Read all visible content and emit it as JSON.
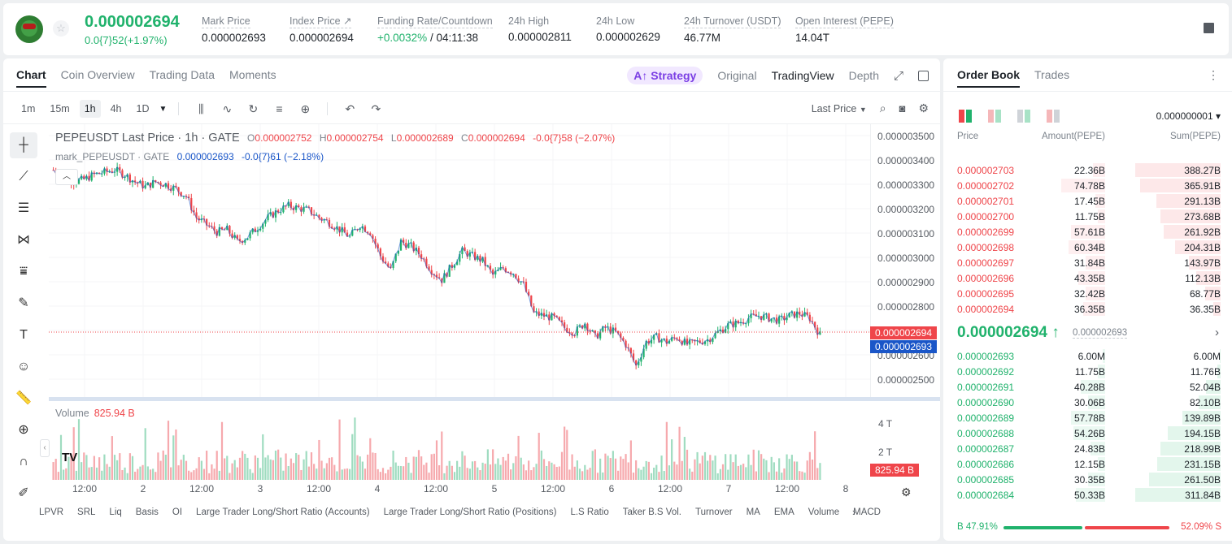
{
  "header": {
    "last_price": "0.000002694",
    "change": "0.0{7}52(+1.97%)",
    "star_icon": "☆",
    "stats": [
      {
        "label": "Mark Price",
        "value": "0.000002693"
      },
      {
        "label": "Index Price ↗",
        "value": "0.000002694"
      },
      {
        "label": "Funding Rate/Countdown",
        "value_green": "+0.0032%",
        "value": " / 04:11:38"
      },
      {
        "label": "24h High",
        "value": "0.000002811"
      },
      {
        "label": "24h Low",
        "value": "0.000002629"
      },
      {
        "label": "24h Turnover (USDT)",
        "value": "46.77M"
      },
      {
        "label": "Open Interest (PEPE)",
        "value": "14.04T"
      }
    ]
  },
  "chart_tabs": [
    "Chart",
    "Coin Overview",
    "Trading Data",
    "Moments"
  ],
  "view_tabs": {
    "strategy": "A↑ Strategy",
    "original": "Original",
    "tradingview": "TradingView",
    "depth": "Depth"
  },
  "toolbar": {
    "timeframes": [
      "1m",
      "15m",
      "1h",
      "4h",
      "1D"
    ],
    "active_timeframe": "1h",
    "price_type": "Last Price"
  },
  "legend": {
    "symbol": "PEPEUSDT Last Price · 1h · GATE",
    "o": "0.000002752",
    "h": "0.000002754",
    "l": "0.000002689",
    "c": "0.000002694",
    "change": "-0.0{7}58 (−2.07%)",
    "mark_symbol": "mark_PEPEUSDT · GATE",
    "mark_value": "0.000002693",
    "mark_change": "-0.0{7}61 (−2.18%)"
  },
  "price_axis": [
    "0.000003500",
    "0.000003400",
    "0.000003300",
    "0.000003200",
    "0.000003100",
    "0.000003000",
    "0.000002900",
    "0.000002800",
    "0.000002600",
    "0.000002500"
  ],
  "price_tag_last": "0.000002694",
  "price_tag_mark": "0.000002693",
  "volume": {
    "label": "Volume",
    "value": "825.94 B",
    "axis": [
      "4 T",
      "2 T"
    ],
    "tag": "825.94 B"
  },
  "time_axis": [
    "12:00",
    "2",
    "12:00",
    "3",
    "12:00",
    "4",
    "12:00",
    "5",
    "12:00",
    "6",
    "12:00",
    "7",
    "12:00",
    "8"
  ],
  "indicators": [
    "LPVR",
    "SRL",
    "Liq",
    "Basis",
    "OI",
    "Large Trader Long/Short Ratio (Accounts)",
    "Large Trader Long/Short Ratio (Positions)",
    "L.S Ratio",
    "Taker B.S Vol.",
    "Turnover",
    "MA",
    "EMA",
    "Volume",
    "MACD"
  ],
  "colors": {
    "up": "#20b26c",
    "down": "#ef454a",
    "mark": "#1a56c8",
    "brand_strategy": "#7b3fe4"
  },
  "orderbook": {
    "tabs": [
      "Order Book",
      "Trades"
    ],
    "tick": "0.000000001 ▾",
    "headers": {
      "price": "Price",
      "amount": "Amount(PEPE)",
      "sum": "Sum(PEPE)"
    },
    "asks": [
      {
        "price": "0.000002703",
        "amount": "22.36B",
        "sum": "388.27B",
        "depth": 1.0,
        "amtDepth": 0.05
      },
      {
        "price": "0.000002702",
        "amount": "74.78B",
        "sum": "365.91B",
        "depth": 0.94,
        "amtDepth": 0.18
      },
      {
        "price": "0.000002701",
        "amount": "17.45B",
        "sum": "291.13B",
        "depth": 0.75,
        "amtDepth": 0.04
      },
      {
        "price": "0.000002700",
        "amount": "11.75B",
        "sum": "273.68B",
        "depth": 0.7,
        "amtDepth": 0.03
      },
      {
        "price": "0.000002699",
        "amount": "57.61B",
        "sum": "261.92B",
        "depth": 0.67,
        "amtDepth": 0.14
      },
      {
        "price": "0.000002698",
        "amount": "60.34B",
        "sum": "204.31B",
        "depth": 0.53,
        "amtDepth": 0.15
      },
      {
        "price": "0.000002697",
        "amount": "31.84B",
        "sum": "143.97B",
        "depth": 0.37,
        "amtDepth": 0.08
      },
      {
        "price": "0.000002696",
        "amount": "43.35B",
        "sum": "112.13B",
        "depth": 0.29,
        "amtDepth": 0.11
      },
      {
        "price": "0.000002695",
        "amount": "32.42B",
        "sum": "68.77B",
        "depth": 0.18,
        "amtDepth": 0.08
      },
      {
        "price": "0.000002694",
        "amount": "36.35B",
        "sum": "36.35B",
        "depth": 0.09,
        "amtDepth": 0.09
      }
    ],
    "mid_price": "0.000002694 ↑",
    "mid_mark": "0.000002693",
    "bids": [
      {
        "price": "0.000002693",
        "amount": "6.00M",
        "sum": "6.00M",
        "depth": 0.01,
        "amtDepth": 0.01
      },
      {
        "price": "0.000002692",
        "amount": "11.75B",
        "sum": "11.76B",
        "depth": 0.04,
        "amtDepth": 0.03
      },
      {
        "price": "0.000002691",
        "amount": "40.28B",
        "sum": "52.04B",
        "depth": 0.17,
        "amtDepth": 0.1
      },
      {
        "price": "0.000002690",
        "amount": "30.06B",
        "sum": "82.10B",
        "depth": 0.26,
        "amtDepth": 0.07
      },
      {
        "price": "0.000002689",
        "amount": "57.78B",
        "sum": "139.89B",
        "depth": 0.45,
        "amtDepth": 0.14
      },
      {
        "price": "0.000002688",
        "amount": "54.26B",
        "sum": "194.15B",
        "depth": 0.62,
        "amtDepth": 0.13
      },
      {
        "price": "0.000002687",
        "amount": "24.83B",
        "sum": "218.99B",
        "depth": 0.7,
        "amtDepth": 0.06
      },
      {
        "price": "0.000002686",
        "amount": "12.15B",
        "sum": "231.15B",
        "depth": 0.74,
        "amtDepth": 0.03
      },
      {
        "price": "0.000002685",
        "amount": "30.35B",
        "sum": "261.50B",
        "depth": 0.84,
        "amtDepth": 0.07
      },
      {
        "price": "0.000002684",
        "amount": "50.33B",
        "sum": "311.84B",
        "depth": 1.0,
        "amtDepth": 0.12
      }
    ],
    "buy_ratio": "B 47.91%",
    "sell_ratio": "52.09% S",
    "buy_share": 0.4791
  },
  "chart_data": {
    "type": "candlestick",
    "series_note_last": "Last Price",
    "price_range": [
      2.4e-06,
      3.5e-06
    ],
    "candles_closes": [
      3.38e-06,
      3.36e-06,
      3.33e-06,
      3.34e-06,
      3.36e-06,
      3.37e-06,
      3.38e-06,
      3.36e-06,
      3.33e-06,
      3.31e-06,
      3.33e-06,
      3.32e-06,
      3.3e-06,
      3.27e-06,
      3.18e-06,
      3.15e-06,
      3.12e-06,
      3.13e-06,
      3.08e-06,
      3.1e-06,
      3.14e-06,
      3.18e-06,
      3.21e-06,
      3.23e-06,
      3.22e-06,
      3.21e-06,
      3.18e-06,
      3.16e-06,
      3.13e-06,
      3.1e-06,
      3.15e-06,
      3.12e-06,
      3.02e-06,
      2.96e-06,
      3.08e-06,
      3.06e-06,
      3.02e-06,
      2.96e-06,
      2.92e-06,
      2.98e-06,
      3.04e-06,
      3.02e-06,
      3e-06,
      2.94e-06,
      2.97e-06,
      2.95e-06,
      2.9e-06,
      2.78e-06,
      2.77e-06,
      2.76e-06,
      2.72e-06,
      2.7e-06,
      2.74e-06,
      2.68e-06,
      2.72e-06,
      2.7e-06,
      2.65e-06,
      2.56e-06,
      2.66e-06,
      2.68e-06,
      2.66e-06,
      2.68e-06,
      2.65e-06,
      2.66e-06,
      2.67e-06,
      2.7e-06,
      2.73e-06,
      2.74e-06,
      2.76e-06,
      2.77e-06,
      2.76e-06,
      2.75e-06,
      2.77e-06,
      2.78e-06,
      2.76e-06,
      2.69e-06
    ]
  }
}
